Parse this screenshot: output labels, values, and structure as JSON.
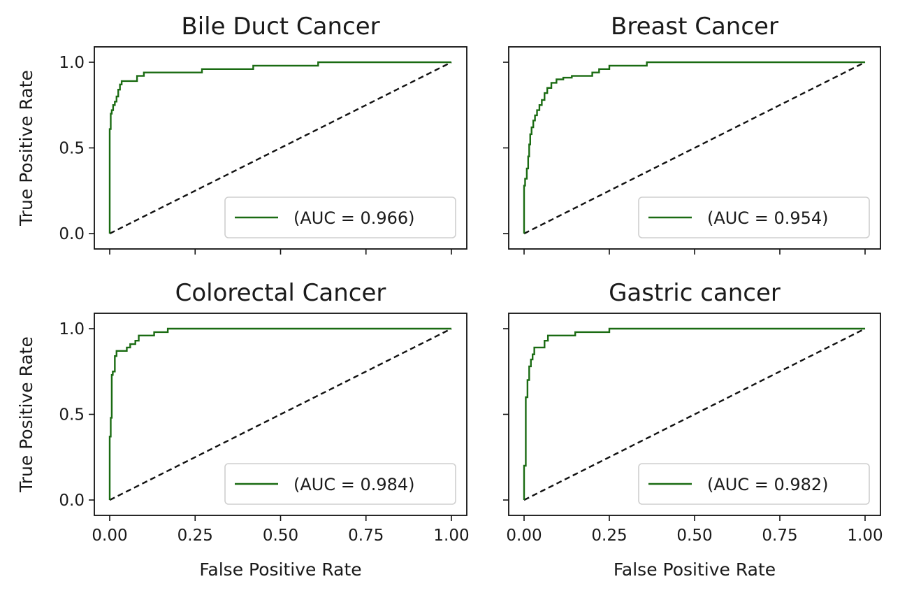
{
  "figure": {
    "xticks": [
      "0.00",
      "0.25",
      "0.50",
      "0.75",
      "1.00"
    ],
    "yticks": [
      "0.0",
      "0.5",
      "1.0"
    ],
    "line_color": "#1a6b12",
    "diag_color": "#111111"
  },
  "chart_data": [
    {
      "type": "line",
      "title": "Bile Duct Cancer",
      "xlabel": "",
      "ylabel": "True Positive Rate",
      "xlim": [
        0,
        1
      ],
      "ylim": [
        0,
        1
      ],
      "legend": "(AUC = 0.966)",
      "legend_position": "lower right",
      "series": [
        {
          "kind": "roc",
          "x": [
            0.0,
            0.0,
            0.003,
            0.003,
            0.006,
            0.006,
            0.01,
            0.01,
            0.015,
            0.015,
            0.02,
            0.02,
            0.025,
            0.025,
            0.03,
            0.03,
            0.035,
            0.035,
            0.04,
            0.04,
            0.06,
            0.06,
            0.08,
            0.08,
            0.1,
            0.1,
            0.27,
            0.27,
            0.42,
            0.42,
            0.61,
            0.61,
            1.0
          ],
          "y": [
            0.0,
            0.61,
            0.61,
            0.7,
            0.7,
            0.72,
            0.72,
            0.75,
            0.75,
            0.77,
            0.77,
            0.8,
            0.8,
            0.84,
            0.84,
            0.87,
            0.87,
            0.89,
            0.89,
            0.89,
            0.89,
            0.89,
            0.89,
            0.92,
            0.92,
            0.94,
            0.94,
            0.96,
            0.96,
            0.98,
            0.98,
            1.0,
            1.0
          ]
        },
        {
          "kind": "chance",
          "x": [
            0,
            1
          ],
          "y": [
            0,
            1
          ]
        }
      ]
    },
    {
      "type": "line",
      "title": "Breast Cancer",
      "xlabel": "",
      "ylabel": "",
      "xlim": [
        0,
        1
      ],
      "ylim": [
        0,
        1
      ],
      "legend": "(AUC = 0.954)",
      "legend_position": "lower right",
      "series": [
        {
          "kind": "roc",
          "x": [
            0.0,
            0.0,
            0.003,
            0.003,
            0.008,
            0.008,
            0.012,
            0.012,
            0.015,
            0.015,
            0.018,
            0.018,
            0.022,
            0.022,
            0.027,
            0.027,
            0.032,
            0.032,
            0.038,
            0.038,
            0.045,
            0.045,
            0.052,
            0.052,
            0.06,
            0.06,
            0.068,
            0.068,
            0.08,
            0.08,
            0.095,
            0.095,
            0.115,
            0.115,
            0.14,
            0.14,
            0.2,
            0.2,
            0.22,
            0.22,
            0.25,
            0.25,
            0.36,
            0.36,
            1.0
          ],
          "y": [
            0.0,
            0.28,
            0.28,
            0.32,
            0.32,
            0.38,
            0.38,
            0.45,
            0.45,
            0.52,
            0.52,
            0.58,
            0.58,
            0.62,
            0.62,
            0.66,
            0.66,
            0.69,
            0.69,
            0.72,
            0.72,
            0.75,
            0.75,
            0.78,
            0.78,
            0.82,
            0.82,
            0.85,
            0.85,
            0.88,
            0.88,
            0.9,
            0.9,
            0.91,
            0.91,
            0.92,
            0.92,
            0.94,
            0.94,
            0.96,
            0.96,
            0.98,
            0.98,
            1.0,
            1.0
          ]
        },
        {
          "kind": "chance",
          "x": [
            0,
            1
          ],
          "y": [
            0,
            1
          ]
        }
      ]
    },
    {
      "type": "line",
      "title": "Colorectal Cancer",
      "xlabel": "False Positive Rate",
      "ylabel": "True Positive Rate",
      "xlim": [
        0,
        1
      ],
      "ylim": [
        0,
        1
      ],
      "legend": "(AUC = 0.984)",
      "legend_position": "lower right",
      "series": [
        {
          "kind": "roc",
          "x": [
            0.0,
            0.0,
            0.003,
            0.003,
            0.006,
            0.006,
            0.009,
            0.009,
            0.015,
            0.015,
            0.02,
            0.02,
            0.05,
            0.05,
            0.06,
            0.06,
            0.075,
            0.075,
            0.085,
            0.085,
            0.13,
            0.13,
            0.17,
            0.17,
            1.0
          ],
          "y": [
            0.0,
            0.37,
            0.37,
            0.48,
            0.48,
            0.73,
            0.73,
            0.75,
            0.75,
            0.84,
            0.84,
            0.87,
            0.87,
            0.89,
            0.89,
            0.91,
            0.91,
            0.93,
            0.93,
            0.96,
            0.96,
            0.98,
            0.98,
            1.0,
            1.0
          ]
        },
        {
          "kind": "chance",
          "x": [
            0,
            1
          ],
          "y": [
            0,
            1
          ]
        }
      ]
    },
    {
      "type": "line",
      "title": "Gastric cancer",
      "xlabel": "False Positive Rate",
      "ylabel": "",
      "xlim": [
        0,
        1
      ],
      "ylim": [
        0,
        1
      ],
      "legend": "(AUC = 0.982)",
      "legend_position": "lower right",
      "series": [
        {
          "kind": "roc",
          "x": [
            0.0,
            0.0,
            0.005,
            0.005,
            0.01,
            0.01,
            0.015,
            0.015,
            0.02,
            0.02,
            0.025,
            0.025,
            0.03,
            0.03,
            0.06,
            0.06,
            0.07,
            0.07,
            0.15,
            0.15,
            0.25,
            0.25,
            1.0
          ],
          "y": [
            0.0,
            0.2,
            0.2,
            0.6,
            0.6,
            0.7,
            0.7,
            0.78,
            0.78,
            0.82,
            0.82,
            0.85,
            0.85,
            0.89,
            0.89,
            0.93,
            0.93,
            0.96,
            0.96,
            0.98,
            0.98,
            1.0,
            1.0
          ]
        },
        {
          "kind": "chance",
          "x": [
            0,
            1
          ],
          "y": [
            0,
            1
          ]
        }
      ]
    }
  ]
}
